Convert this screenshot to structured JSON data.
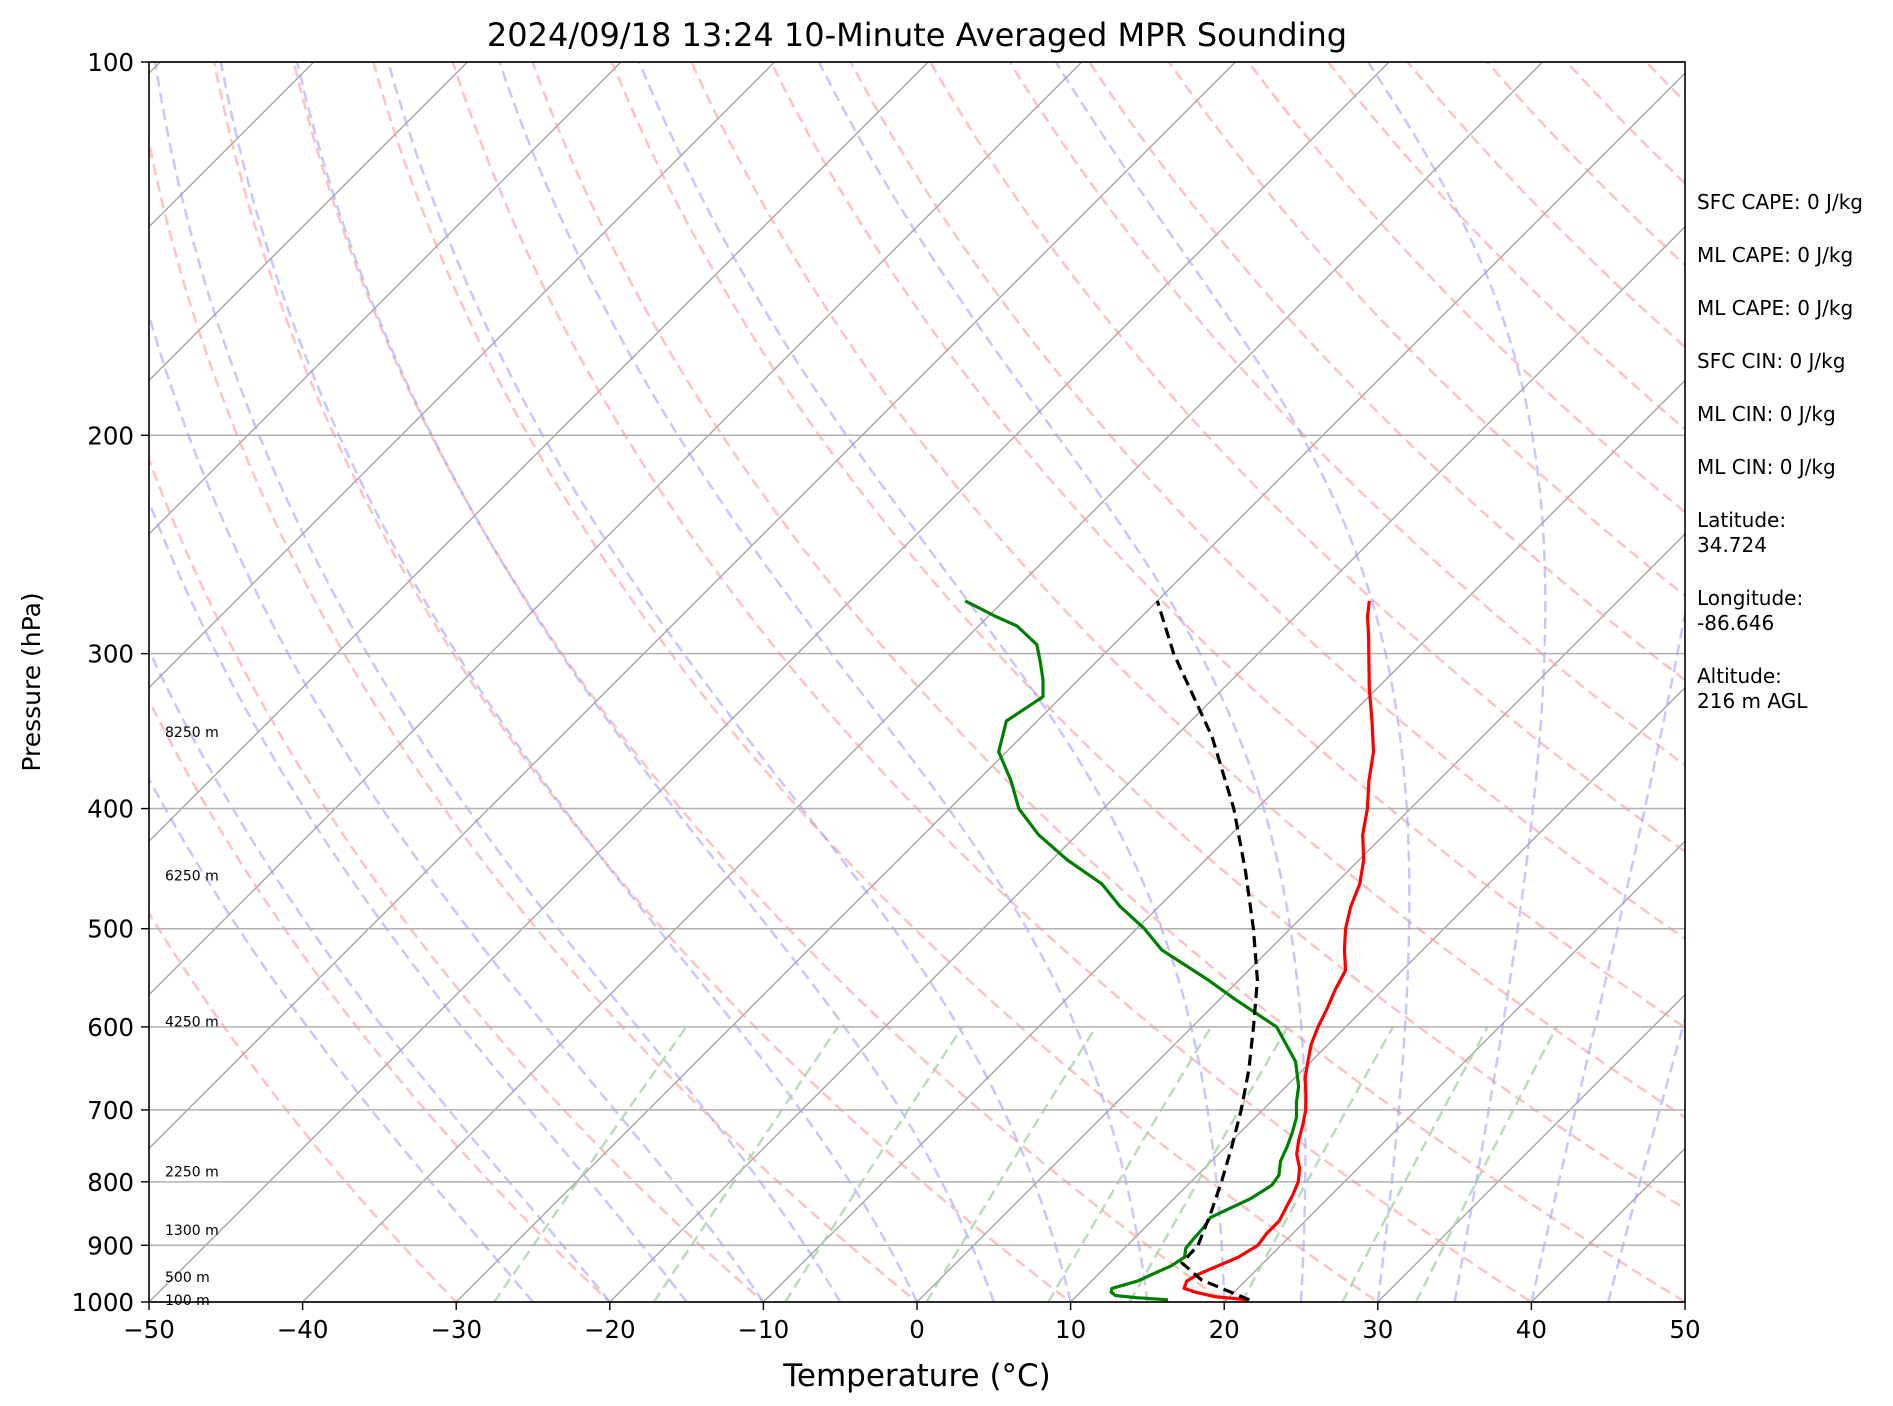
{
  "chart_data": {
    "type": "line",
    "subtype": "skew-t log-p diagram",
    "title": "2024/09/18 13:24 10-Minute Averaged MPR Sounding",
    "xlabel": "Temperature (°C)",
    "ylabel": "Pressure (hPa)",
    "xlim": [
      -50,
      50
    ],
    "ylim": [
      1000,
      100
    ],
    "y_scale": "log",
    "x_ticks": [
      "−50",
      "−40",
      "−30",
      "−20",
      "−10",
      "0",
      "10",
      "20",
      "30",
      "40",
      "50"
    ],
    "x_tick_values": [
      -50,
      -40,
      -30,
      -20,
      -10,
      0,
      10,
      20,
      30,
      40,
      50
    ],
    "y_ticks": [
      "100",
      "200",
      "300",
      "400",
      "500",
      "600",
      "700",
      "800",
      "900",
      "1000"
    ],
    "y_tick_values": [
      100,
      200,
      300,
      400,
      500,
      600,
      700,
      800,
      900,
      1000
    ],
    "grid": true,
    "background_lines": [
      {
        "kind": "isotherms",
        "color": "#a6a6a6",
        "style": "solid"
      },
      {
        "kind": "dry adiabats",
        "color": "#ff9999",
        "style": "dashed"
      },
      {
        "kind": "moist adiabats",
        "color": "#9999ff",
        "style": "dashed"
      },
      {
        "kind": "mixing ratio lines",
        "color": "#a7d3a7",
        "style": "dashed"
      }
    ],
    "height_labels": [
      {
        "text": "8250 m",
        "pressure": 347
      },
      {
        "text": "6250 m",
        "pressure": 453
      },
      {
        "text": "4250 m",
        "pressure": 594
      },
      {
        "text": "2250 m",
        "pressure": 785
      },
      {
        "text": "1300 m",
        "pressure": 875
      },
      {
        "text": "500 m",
        "pressure": 955
      },
      {
        "text": "100 m",
        "pressure": 996
      }
    ],
    "series": [
      {
        "kind": "temperature",
        "color": "#ff0000",
        "style": "solid",
        "pressure": [
          996,
          990,
          982,
          975,
          962,
          950,
          940,
          920,
          900,
          880,
          860,
          840,
          820,
          800,
          780,
          760,
          740,
          720,
          700,
          680,
          660,
          640,
          620,
          600,
          580,
          560,
          540,
          520,
          500,
          480,
          460,
          440,
          420,
          400,
          380,
          360,
          340,
          320,
          300,
          290,
          280,
          272
        ],
        "values": [
          21.4,
          19.0,
          17.5,
          16.5,
          16.2,
          16.5,
          17.0,
          18.0,
          18.5,
          18.3,
          18.3,
          17.9,
          17.5,
          17.0,
          16.2,
          15.1,
          14.3,
          13.6,
          12.8,
          11.8,
          10.7,
          9.8,
          8.9,
          8.2,
          7.6,
          6.9,
          6.3,
          4.9,
          3.6,
          2.5,
          1.6,
          0.3,
          -1.4,
          -2.8,
          -4.5,
          -6.1,
          -8.2,
          -10.5,
          -12.8,
          -14.0,
          -15.3,
          -16.2
        ]
      },
      {
        "kind": "dewpoint",
        "color": "#008000",
        "style": "solid",
        "pressure": [
          996,
          992,
          988,
          982,
          975,
          962,
          950,
          935,
          920,
          905,
          890,
          870,
          855,
          840,
          825,
          805,
          790,
          770,
          750,
          730,
          710,
          690,
          670,
          640,
          600,
          570,
          550,
          520,
          500,
          480,
          460,
          440,
          420,
          400,
          380,
          360,
          340,
          325,
          315,
          305,
          295,
          285,
          280,
          272
        ],
        "values": [
          16.2,
          14.0,
          12.5,
          12.0,
          11.8,
          13.0,
          13.5,
          14.2,
          14.5,
          14.0,
          13.9,
          13.8,
          13.6,
          14.3,
          15.0,
          15.5,
          15.3,
          14.5,
          14.0,
          13.4,
          12.7,
          11.7,
          10.8,
          9.0,
          5.5,
          1.0,
          -2.0,
          -7.0,
          -9.5,
          -12.5,
          -15.2,
          -19.0,
          -22.5,
          -25.5,
          -27.8,
          -30.5,
          -32.0,
          -31.2,
          -32.3,
          -33.6,
          -35.0,
          -37.5,
          -39.5,
          -42.5
        ]
      },
      {
        "kind": "parcel",
        "color": "#000000",
        "style": "dashed",
        "pressure": [
          996,
          960,
          930,
          900,
          850,
          800,
          750,
          700,
          650,
          600,
          550,
          500,
          450,
          400,
          350,
          300,
          272
        ],
        "values": [
          21.5,
          17.1,
          14.7,
          14.6,
          13.4,
          12.0,
          10.4,
          8.6,
          6.5,
          4.0,
          1.2,
          -2.4,
          -6.6,
          -11.5,
          -17.6,
          -25.5,
          -30.0
        ]
      }
    ]
  },
  "stats": [
    {
      "label": "SFC CAPE:",
      "value": "0 J/kg"
    },
    {
      "label": "ML CAPE:",
      "value": "0 J/kg"
    },
    {
      "label": "ML CAPE:",
      "value": "0 J/kg"
    },
    {
      "label": "SFC CIN:",
      "value": "0 J/kg"
    },
    {
      "label": "ML CIN:",
      "value": "0 J/kg"
    },
    {
      "label": "ML CIN:",
      "value": "0 J/kg"
    }
  ],
  "location": [
    {
      "label": "Latitude:",
      "value": "34.724"
    },
    {
      "label": "Longitude:",
      "value": "-86.646"
    },
    {
      "label": "Altitude:",
      "value": "216 m AGL"
    }
  ]
}
